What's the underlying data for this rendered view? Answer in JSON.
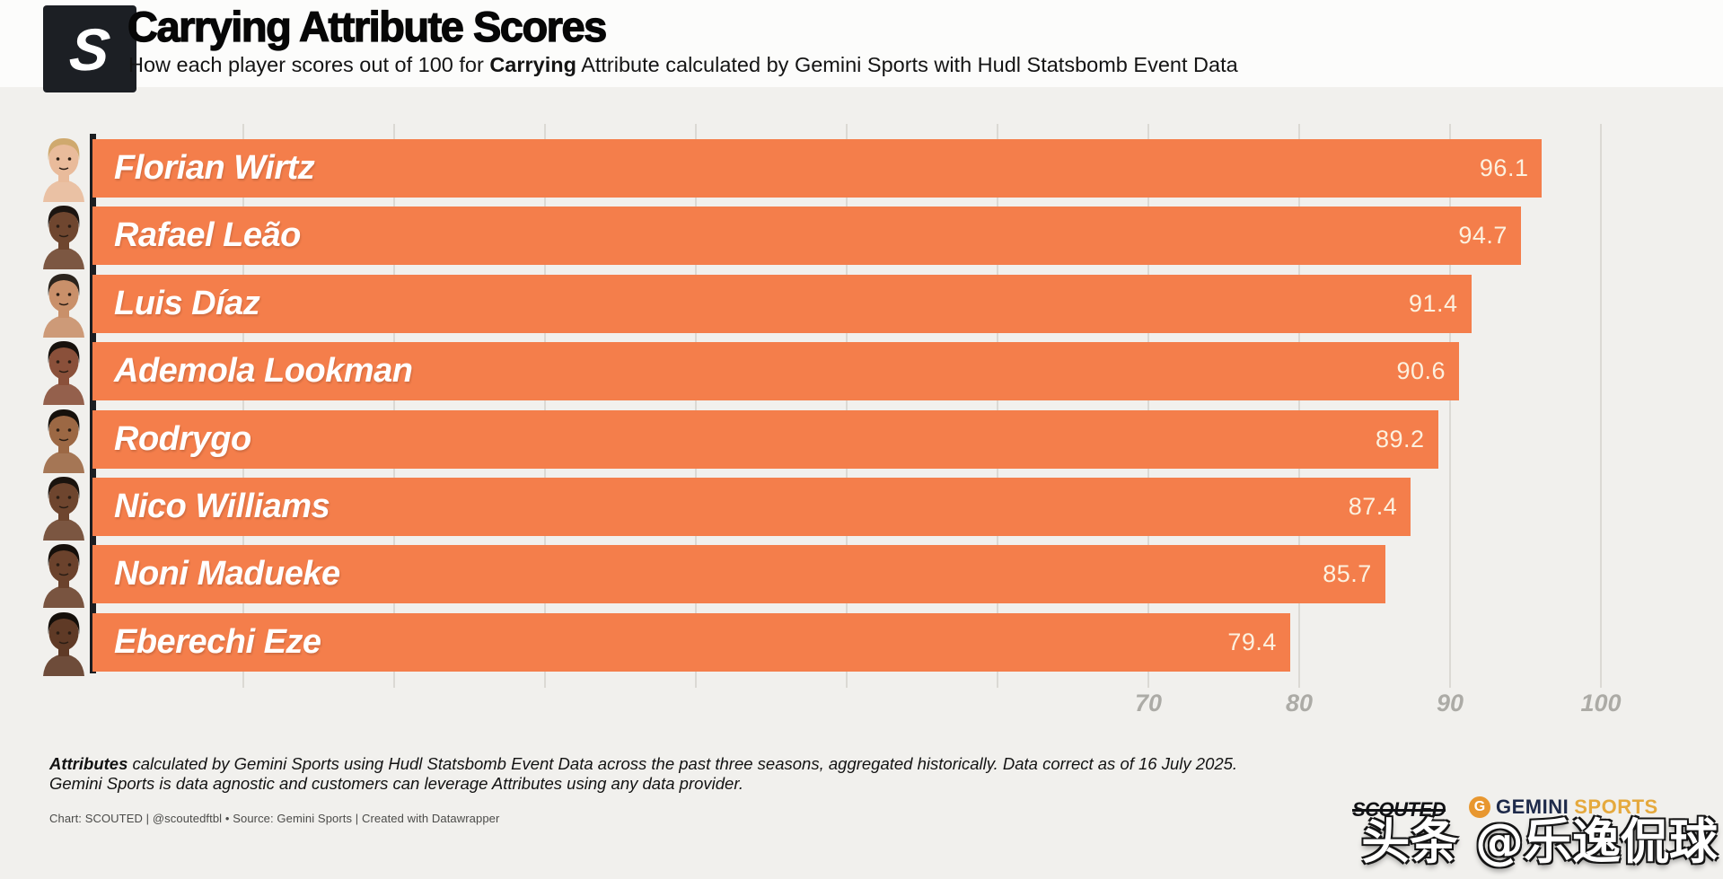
{
  "header": {
    "logo_letter": "S",
    "title": "Carrying Attribute Scores",
    "subtitle": {
      "prefix": "How each player scores out of 100 for ",
      "bold": "Carrying",
      "suffix": " Attribute calculated by Gemini Sports with Hudl Statsbomb Event Data"
    }
  },
  "chart_data": {
    "type": "bar",
    "orientation": "horizontal",
    "title": "Carrying Attribute Scores",
    "categories": [
      "Florian Wirtz",
      "Rafael Leão",
      "Luis Díaz",
      "Ademola Lookman",
      "Rodrygo",
      "Nico Williams",
      "Noni Madueke",
      "Eberechi Eze"
    ],
    "values": [
      96.1,
      94.7,
      91.4,
      90.6,
      89.2,
      87.4,
      85.7,
      79.4
    ],
    "xlabel": "",
    "ylabel": "",
    "xlim": [
      0,
      100
    ],
    "x_tick_labels": [
      70,
      80,
      90,
      100
    ],
    "gridline_step": 10,
    "grid": true,
    "legend": false,
    "bar_color": "#f47e4b",
    "value_label_color": "#fcf1df",
    "gridline_color": "#dbd9d4",
    "axis_line_color": "#1b1d21"
  },
  "avatars": [
    {
      "player": "Florian Wirtz",
      "skin": "#e9bb9b",
      "hair": "#cfa96e"
    },
    {
      "player": "Rafael Leão",
      "skin": "#6f462f",
      "hair": "#1c1511"
    },
    {
      "player": "Luis Díaz",
      "skin": "#c9906a",
      "hair": "#2b241d"
    },
    {
      "player": "Ademola Lookman",
      "skin": "#8a503a",
      "hair": "#17110d"
    },
    {
      "player": "Rodrygo",
      "skin": "#9c6844",
      "hair": "#16110c"
    },
    {
      "player": "Nico Williams",
      "skin": "#6e452e",
      "hair": "#1a130e"
    },
    {
      "player": "Noni Madueke",
      "skin": "#6b422c",
      "hair": "#16100b"
    },
    {
      "player": "Eberechi Eze",
      "skin": "#5f3a26",
      "hair": "#140f0a"
    }
  ],
  "footer": {
    "note_lead": "Attributes",
    "note_rest": " calculated by Gemini Sports using Hudl Statsbomb Event Data across the past three seasons, aggregated historically. Data correct as of 16 July 2025.",
    "note_line2": "Gemini Sports is data agnostic and customers can leverage Attributes using any data provider.",
    "caption": "Chart: SCOUTED | @scoutedftbl • Source: Gemini Sports | Created with Datawrapper"
  },
  "branding": {
    "scouted_wordmark": "SCOUTED",
    "gemini_icon_letter": "G",
    "gemini_word": "GEMINI",
    "sports_word": "SPORTS",
    "gemini_icon_color": "#e8972f",
    "gemini_word_color": "#1e2a4a",
    "sports_word_color": "#e5a93d"
  },
  "watermark": "头条 @乐逸侃球"
}
